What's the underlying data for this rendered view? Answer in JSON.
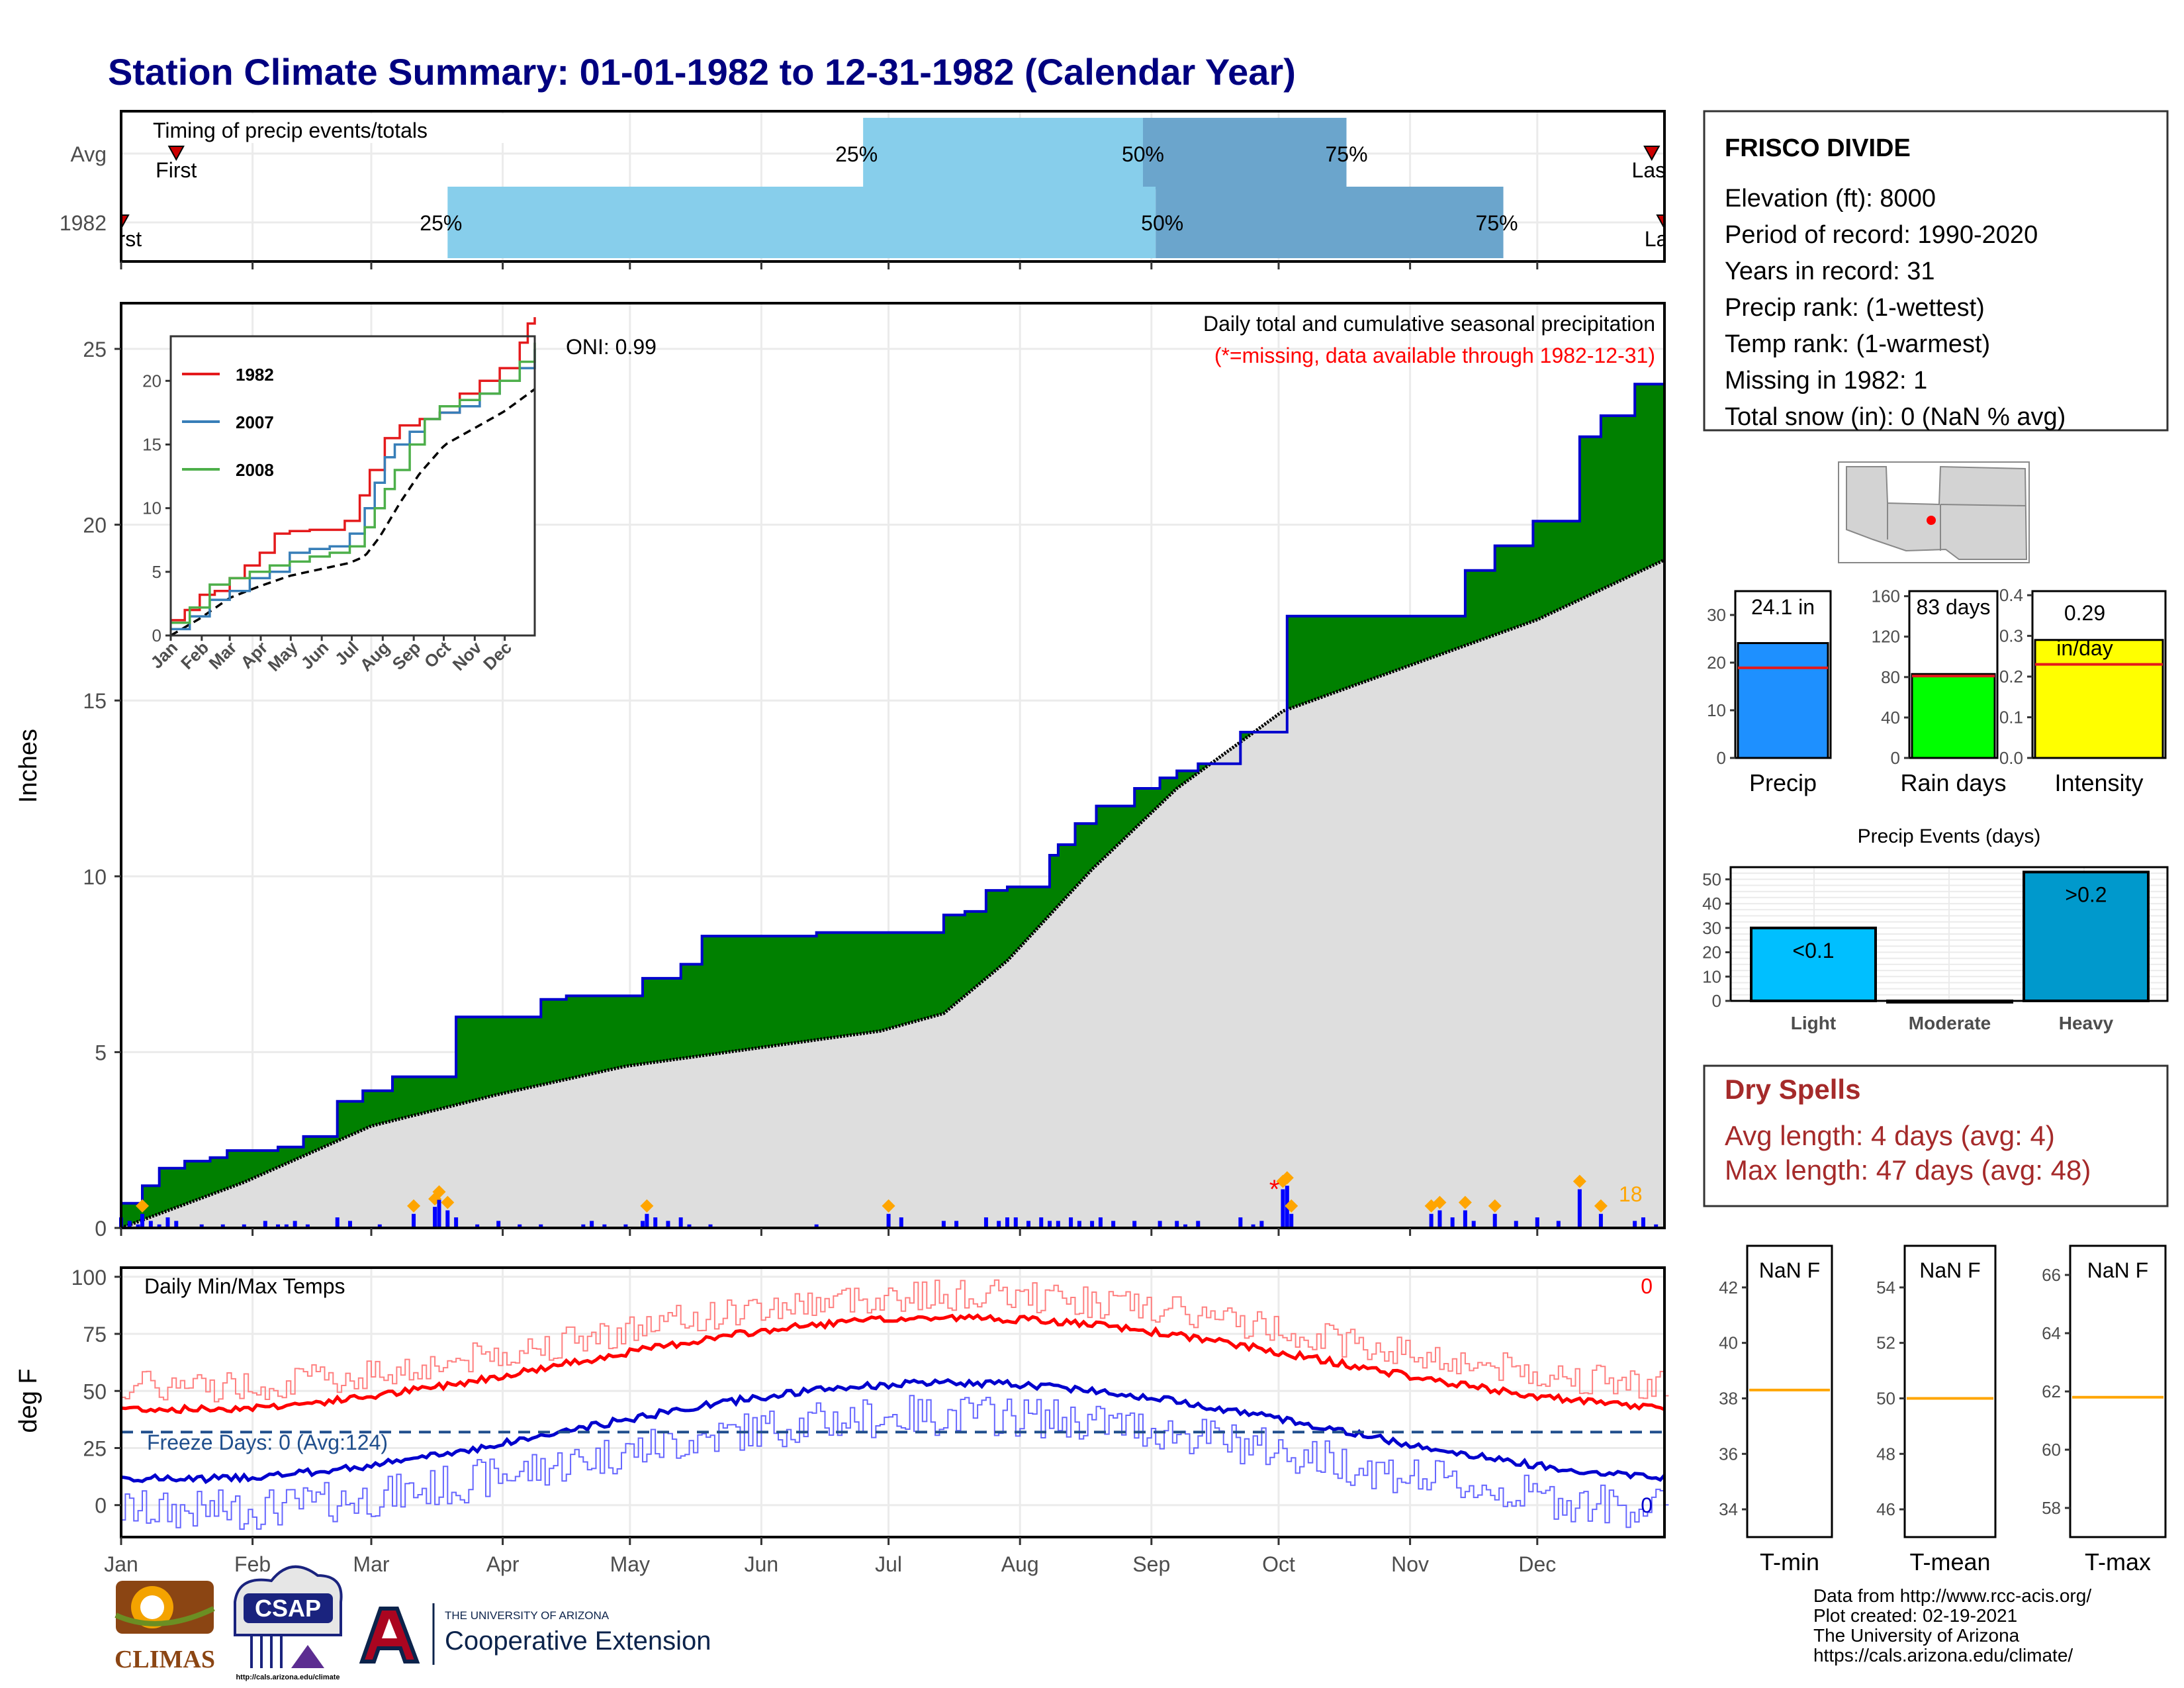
{
  "title": "Station Climate Summary: 01-01-1982 to 12-31-1982 (Calendar Year)",
  "months": [
    "Jan",
    "Feb",
    "Mar",
    "Apr",
    "May",
    "Jun",
    "Jul",
    "Aug",
    "Sep",
    "Oct",
    "Nov",
    "Dec"
  ],
  "timing": {
    "title": "Timing of precip events/totals",
    "rows": [
      {
        "label": "Avg",
        "first_label": "First",
        "last_label": "Last",
        "first_doy": 14,
        "last_doy": 362,
        "p25": 176,
        "p50": 242,
        "p75": 290,
        "p25_label": "25%",
        "p50_label": "50%",
        "p75_label": "75%"
      },
      {
        "label": "1982",
        "first_label": "First",
        "last_label": "Last",
        "first_doy": 1,
        "last_doy": 365,
        "p25": 78,
        "p50": 245,
        "p75": 327,
        "p25_label": "25%",
        "p50_label": "50%",
        "p75_label": "75%"
      }
    ]
  },
  "precip_panel": {
    "subtitle": "Daily total and cumulative seasonal precipitation",
    "missing_note": "(*=missing, data available through 1982-12-31)",
    "oni_label": "ONI: 0.99",
    "ylabel": "Inches",
    "yticks": [
      "0",
      "5",
      "10",
      "15",
      "20",
      "25"
    ],
    "count_label": "18"
  },
  "inset": {
    "legend": [
      {
        "name": "1982",
        "color": "#e41a1c"
      },
      {
        "name": "2007",
        "color": "#377eb8"
      },
      {
        "name": "2008",
        "color": "#4daf4a"
      }
    ],
    "yticks": [
      "0",
      "5",
      "10",
      "15",
      "20"
    ],
    "xticks": [
      "Jan",
      "Feb",
      "Mar",
      "Apr",
      "May",
      "Jun",
      "Jul",
      "Aug",
      "Sep",
      "Oct",
      "Nov",
      "Dec"
    ]
  },
  "temps_panel": {
    "title": "Daily Min/Max Temps",
    "freeze_label": "Freeze Days: 0 (Avg:124)",
    "ylabel": "deg F",
    "yticks": [
      "0",
      "25",
      "50",
      "75",
      "100"
    ],
    "max_count": "0",
    "min_count": "0"
  },
  "station": {
    "name": "FRISCO DIVIDE",
    "lines": [
      "Elevation (ft): 8000",
      "Period of record: 1990-2020",
      "Years in record: 31",
      "Precip rank:  (1-wettest)",
      "Temp rank:  (1-warmest)",
      "Missing in 1982: 1",
      "Total snow (in): 0 (NaN % avg)"
    ]
  },
  "mini_bars": [
    {
      "name": "Precip",
      "value_label": "24.1 in",
      "value": 24.1,
      "avg": 18.9,
      "ymax": 35,
      "ticks": [
        "0",
        "10",
        "20",
        "30"
      ],
      "tickvals": [
        0,
        10,
        20,
        30
      ],
      "color": "#1e90ff"
    },
    {
      "name": "Rain days",
      "value_label": "83 days",
      "value": 83,
      "avg": 81,
      "ymax": 165,
      "ticks": [
        "0",
        "40",
        "80",
        "120",
        "160"
      ],
      "tickvals": [
        0,
        40,
        80,
        120,
        160
      ],
      "color": "#00ff00"
    },
    {
      "name": "Intensity",
      "value_label": "0.29 in/day",
      "value": 0.29,
      "avg": 0.23,
      "ymax": 0.41,
      "ticks": [
        "0.0",
        "0.1",
        "0.2",
        "0.3",
        "0.4"
      ],
      "tickvals": [
        0,
        0.1,
        0.2,
        0.3,
        0.4
      ],
      "color": "#ffff00"
    }
  ],
  "events": {
    "title": "Precip Events (days)",
    "categories": [
      "Light",
      "Moderate",
      "Heavy"
    ],
    "values": [
      30,
      0,
      53
    ],
    "labels": [
      "<0.1",
      "",
      ">0.2"
    ],
    "colors": [
      "#00bfff",
      "#00bfff",
      "#0099cc"
    ],
    "yticks": [
      "0",
      "10",
      "20",
      "30",
      "40",
      "50"
    ]
  },
  "dry_spells": {
    "title": "Dry Spells",
    "avg_line": "Avg length: 4 days (avg: 4)",
    "max_line": "Max length: 47 days (avg: 48)"
  },
  "temp_gauges": [
    {
      "name": "T-min",
      "value_label": "NaN F",
      "ticks": [
        "34",
        "36",
        "38",
        "40",
        "42"
      ],
      "tickvals": [
        34,
        36,
        38,
        40,
        42
      ],
      "ymin": 33,
      "ymax": 43.5,
      "avg": 38.3
    },
    {
      "name": "T-mean",
      "value_label": "NaN F",
      "ticks": [
        "46",
        "48",
        "50",
        "52",
        "54"
      ],
      "tickvals": [
        46,
        48,
        50,
        52,
        54
      ],
      "ymin": 45,
      "ymax": 55.5,
      "avg": 50
    },
    {
      "name": "T-max",
      "value_label": "NaN F",
      "ticks": [
        "58",
        "60",
        "62",
        "64",
        "66"
      ],
      "tickvals": [
        58,
        60,
        62,
        64,
        66
      ],
      "ymin": 57,
      "ymax": 67,
      "avg": 61.8
    }
  ],
  "footer": {
    "lines": [
      "Data from http://www.rcc-acis.org/",
      "Plot created: 02-19-2021",
      "The University of Arizona",
      "https://cals.arizona.edu/climate/"
    ],
    "climas": "CLIMAS",
    "csap": "CSAP",
    "csap_url": "http://cals.arizona.edu/climate",
    "ua_top": "THE UNIVERSITY OF ARIZONA",
    "ua_bottom": "Cooperative Extension"
  },
  "chart_data": {
    "type": "area",
    "title": "Daily total and cumulative seasonal precipitation",
    "ylabel": "Inches",
    "ylim": [
      0,
      26.3
    ],
    "series": [
      {
        "name": "1982",
        "x": [
          1,
          6,
          10,
          16,
          22,
          26,
          38,
          44,
          52,
          58,
          65,
          70,
          80,
          87,
          100,
          106,
          112,
          124,
          133,
          138,
          165,
          185,
          195,
          200,
          205,
          210,
          220,
          222,
          226,
          231,
          240,
          246,
          250,
          255,
          265,
          276,
          310,
          318,
          325,
          334,
          345,
          350,
          358,
          365
        ],
        "values": [
          0.7,
          1.2,
          1.7,
          1.9,
          2.0,
          2.2,
          2.3,
          2.6,
          3.6,
          3.9,
          4.3,
          4.3,
          6.0,
          6.0,
          6.5,
          6.6,
          6.6,
          7.1,
          7.5,
          8.3,
          8.4,
          8.4,
          8.9,
          9.0,
          9.6,
          9.7,
          10.6,
          10.9,
          11.5,
          12.0,
          12.5,
          12.8,
          13.0,
          13.2,
          14.1,
          17.4,
          17.4,
          18.7,
          19.4,
          20.1,
          22.5,
          23.1,
          24.0,
          24.1
        ]
      },
      {
        "name": "Avg",
        "x": [
          1,
          30,
          60,
          90,
          120,
          150,
          180,
          195,
          210,
          230,
          250,
          275,
          305,
          335,
          365
        ],
        "values": [
          0,
          1.3,
          2.9,
          3.8,
          4.6,
          5.1,
          5.6,
          6.1,
          7.6,
          10.2,
          12.5,
          14.7,
          16.0,
          17.3,
          19.0
        ]
      }
    ],
    "daily_bars": {
      "x": [
        1,
        3,
        5,
        6,
        8,
        10,
        12,
        14,
        20,
        25,
        30,
        35,
        38,
        40,
        42,
        45,
        52,
        55,
        62,
        70,
        75,
        76,
        78,
        80,
        85,
        90,
        95,
        100,
        110,
        112,
        115,
        120,
        124,
        125,
        127,
        130,
        133,
        135,
        140,
        165,
        182,
        185,
        195,
        198,
        205,
        208,
        210,
        212,
        215,
        218,
        220,
        222,
        225,
        227,
        230,
        232,
        235,
        240,
        246,
        250,
        252,
        255,
        265,
        268,
        270,
        275,
        276,
        277,
        310,
        312,
        315,
        318,
        320,
        325,
        330,
        335,
        340,
        345,
        350,
        358,
        360,
        363
      ],
      "values": [
        0.3,
        0.2,
        0.1,
        0.4,
        0.2,
        0.1,
        0.3,
        0.2,
        0.1,
        0.1,
        0.1,
        0.2,
        0.1,
        0.1,
        0.2,
        0.1,
        0.3,
        0.2,
        0.1,
        0.4,
        0.6,
        0.8,
        0.5,
        0.3,
        0.1,
        0.2,
        0.1,
        0.1,
        0.1,
        0.2,
        0.1,
        0.1,
        0.2,
        0.4,
        0.3,
        0.2,
        0.3,
        0.1,
        0.1,
        0.1,
        0.4,
        0.3,
        0.2,
        0.2,
        0.3,
        0.2,
        0.3,
        0.3,
        0.2,
        0.3,
        0.2,
        0.2,
        0.3,
        0.2,
        0.2,
        0.3,
        0.2,
        0.2,
        0.2,
        0.2,
        0.1,
        0.2,
        0.3,
        0.1,
        0.2,
        1.1,
        1.2,
        0.4,
        0.4,
        0.5,
        0.3,
        0.5,
        0.2,
        0.4,
        0.2,
        0.3,
        0.2,
        1.1,
        0.4,
        0.2,
        0.3,
        0.1
      ]
    },
    "missing_doy": [
      273
    ]
  }
}
